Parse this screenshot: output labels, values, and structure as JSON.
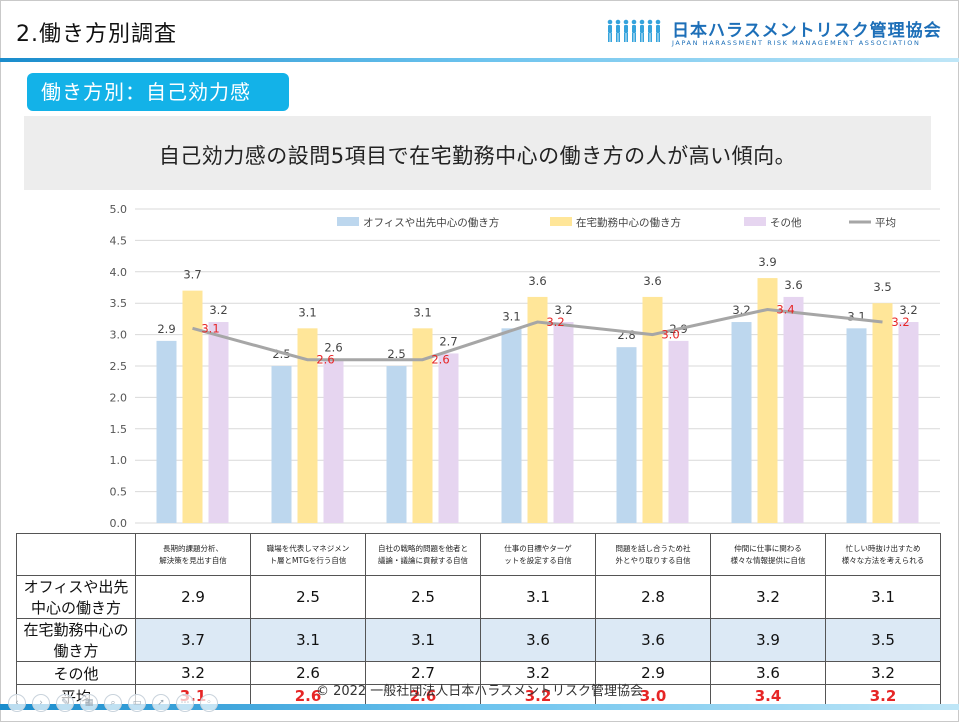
{
  "header": {
    "title": "2.働き方別調査"
  },
  "logo": {
    "name": "日本ハラスメントリスク管理協会",
    "subtitle": "JAPAN HARASSMENT RISK MANAGEMENT ASSOCIATION",
    "icon": "people-group-icon"
  },
  "section": {
    "label": "働き方別：自己効力感"
  },
  "subtitle": "自己効力感の設問5項目で在宅勤務中心の働き方の人が高い傾向。",
  "colors": {
    "office": "#bdd7ee",
    "home": "#ffe699",
    "other": "#e6d5f0",
    "average_line": "#a6a6a6",
    "average_label": "#e62525",
    "accent": "#13b2e8",
    "table_highlight": "#dce9f5"
  },
  "chart_data": {
    "type": "bar",
    "categories": [
      "長期的課題分析、解決策を見出す自信",
      "職場を代表しマネジメント層とMTGを行う自信",
      "自社の戦略的問題を他者と議論・議論に貢献する自信",
      "仕事の目標やターゲットを設定する自信",
      "問題を話し合うため社外とやり取りする自信",
      "仲間に仕事に関わる様々な情報提供に自信",
      "忙しい時抜け出すため様々な方法を考えられる"
    ],
    "series": [
      {
        "name": "オフィスや出先中心の働き方",
        "kind": "bar",
        "values": [
          2.9,
          2.5,
          2.5,
          3.1,
          2.8,
          3.2,
          3.1
        ]
      },
      {
        "name": "在宅勤務中心の働き方",
        "kind": "bar",
        "values": [
          3.7,
          3.1,
          3.1,
          3.6,
          3.6,
          3.9,
          3.5
        ]
      },
      {
        "name": "その他",
        "kind": "bar",
        "values": [
          3.2,
          2.6,
          2.7,
          3.2,
          2.9,
          3.6,
          3.2
        ]
      },
      {
        "name": "平均",
        "kind": "line",
        "values": [
          3.1,
          2.6,
          2.6,
          3.2,
          3.0,
          3.4,
          3.2
        ]
      }
    ],
    "yticks": [
      "0.0",
      "0.5",
      "1.0",
      "1.5",
      "2.0",
      "2.5",
      "3.0",
      "3.5",
      "4.0",
      "4.5",
      "5.0"
    ],
    "ylim": [
      0,
      5
    ],
    "grid": true,
    "legend": "top-right"
  },
  "table": {
    "headers": [
      "長期的課題分析、\n解決策を見出す自信",
      "職場を代表しマネジメン\nト層とMTGを行う自信",
      "自社の戦略的問題を他者と\n議論・議論に貢献する自信",
      "仕事の目標やターゲ\nットを設定する自信",
      "問題を話し合うため社\n外とやり取りする自信",
      "仲間に仕事に関わる\n様々な情報提供に自信",
      "忙しい時抜け出すため\n様々な方法を考えられる"
    ],
    "rows": [
      {
        "label": "オフィスや出先中心の働き方",
        "values": [
          "2.9",
          "2.5",
          "2.5",
          "3.1",
          "2.8",
          "3.2",
          "3.1"
        ]
      },
      {
        "label": "在宅勤務中心の働き方",
        "values": [
          "3.7",
          "3.1",
          "3.1",
          "3.6",
          "3.6",
          "3.9",
          "3.5"
        ]
      },
      {
        "label": "その他",
        "values": [
          "3.2",
          "2.6",
          "2.7",
          "3.2",
          "2.9",
          "3.6",
          "3.2"
        ]
      },
      {
        "label": "平均",
        "values": [
          "3.1",
          "2.6",
          "2.6",
          "3.2",
          "3.0",
          "3.4",
          "3.2"
        ]
      }
    ]
  },
  "footer": {
    "copyright": "© 2022 一般社団法人日本ハラスメントリスク管理協会"
  }
}
